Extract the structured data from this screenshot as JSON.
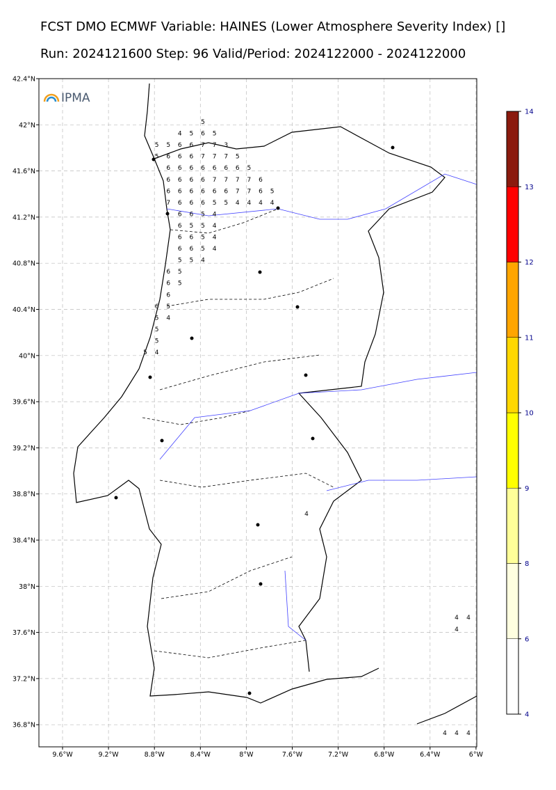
{
  "header": {
    "line1": "FCST DMO ECMWF Variable: HAINES (Lower Atmosphere Severity Index) []",
    "line2": "Run: 2024121600 Step: 96 Valid/Period: 2024122000 - 2024122000"
  },
  "map": {
    "logo": "IPMA",
    "lat_labels": [
      "42.4°N",
      "42°N",
      "41.6°N",
      "41.2°N",
      "40.8°N",
      "40.4°N",
      "40°N",
      "39.6°N",
      "39.2°N",
      "38.8°N",
      "38.4°N",
      "38°N",
      "37.6°N",
      "37.2°N",
      "36.8°N"
    ],
    "lon_labels": [
      "9.6°W",
      "9.2°W",
      "8.8°W",
      "8.4°W",
      "8°W",
      "7.6°W",
      "7.2°W",
      "6.8°W",
      "6.4°W",
      "6°W"
    ],
    "values": [
      5,
      4,
      5,
      6,
      5,
      5,
      5,
      6,
      6,
      7,
      7,
      3,
      5,
      6,
      6,
      6,
      7,
      7,
      7,
      5,
      6,
      6,
      6,
      6,
      6,
      6,
      6,
      5,
      6,
      6,
      6,
      6,
      7,
      7,
      7,
      7,
      6,
      6,
      6,
      6,
      6,
      6,
      6,
      7,
      7,
      6,
      5,
      7,
      6,
      6,
      6,
      5,
      5,
      4,
      4,
      4,
      4,
      6,
      6,
      5,
      4,
      6,
      5,
      5,
      4,
      6,
      6,
      5,
      4,
      6,
      6,
      5,
      4,
      5,
      5,
      4,
      6,
      5,
      6,
      5,
      6,
      6,
      5,
      5,
      4,
      5,
      5,
      5,
      4,
      4,
      4,
      4,
      4,
      4,
      4,
      4
    ]
  },
  "colorbar": {
    "ticks": [
      4,
      6,
      8,
      9,
      10,
      11,
      12,
      13,
      14
    ],
    "colors": [
      "#ffffff",
      "#ffffe0",
      "#ffff99",
      "#ffff00",
      "#ffd700",
      "#ffa500",
      "#ff0000",
      "#8b1a0e"
    ]
  }
}
